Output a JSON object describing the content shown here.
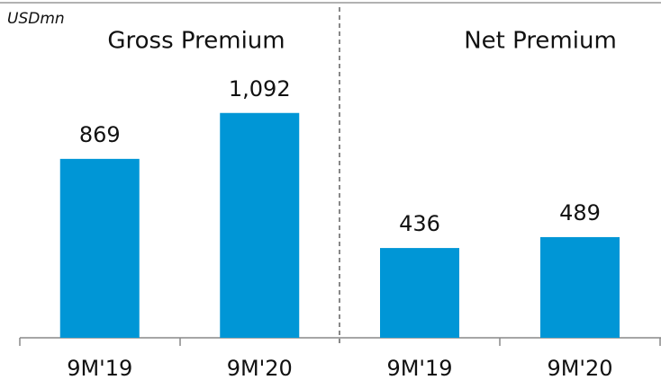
{
  "chart_data": [
    {
      "type": "bar",
      "title": "Gross Premium",
      "ylabel": "USDmn",
      "categories": [
        "9M'19",
        "9M'20"
      ],
      "values": [
        869,
        1092
      ],
      "value_labels": [
        "869",
        "1,092"
      ],
      "color": "#0096d6",
      "ylim": [
        0,
        1200
      ]
    },
    {
      "type": "bar",
      "title": "Net Premium",
      "categories": [
        "9M'19",
        "9M'20"
      ],
      "values": [
        436,
        489
      ],
      "value_labels": [
        "436",
        "489"
      ],
      "color": "#0096d6",
      "ylim": [
        0,
        1200
      ]
    }
  ]
}
